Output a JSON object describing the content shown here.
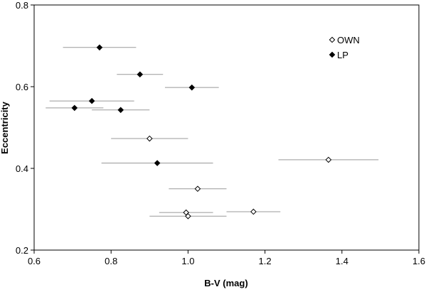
{
  "chart_data": {
    "type": "scatter",
    "title": "",
    "xlabel": "B-V (mag)",
    "ylabel": "Eccentricity",
    "xlim": [
      0.6,
      1.6
    ],
    "ylim": [
      0.2,
      0.8
    ],
    "xticks": [
      "0.6",
      "0.8",
      "1.0",
      "1.2",
      "1.4",
      "1.6"
    ],
    "yticks": [
      "0.2",
      "0.4",
      "0.6",
      "0.8"
    ],
    "grid": false,
    "legend_position": "top-right",
    "error_bars": "horizontal",
    "series": [
      {
        "name": "OWN",
        "marker": "open-diamond",
        "points": [
          {
            "x": 0.9,
            "y": 0.473,
            "xerr_low": 0.8,
            "xerr_high": 1.0
          },
          {
            "x": 1.365,
            "y": 0.421,
            "xerr_low": 1.235,
            "xerr_high": 1.495
          },
          {
            "x": 1.025,
            "y": 0.35,
            "xerr_low": 0.95,
            "xerr_high": 1.1
          },
          {
            "x": 1.17,
            "y": 0.294,
            "xerr_low": 1.1,
            "xerr_high": 1.24
          },
          {
            "x": 0.995,
            "y": 0.292,
            "xerr_low": 0.925,
            "xerr_high": 1.065
          },
          {
            "x": 1.0,
            "y": 0.283,
            "xerr_low": 0.9,
            "xerr_high": 1.1
          }
        ]
      },
      {
        "name": "LP",
        "marker": "filled-diamond",
        "points": [
          {
            "x": 0.77,
            "y": 0.696,
            "xerr_low": 0.675,
            "xerr_high": 0.865
          },
          {
            "x": 0.875,
            "y": 0.63,
            "xerr_low": 0.815,
            "xerr_high": 0.935
          },
          {
            "x": 1.01,
            "y": 0.598,
            "xerr_low": 0.94,
            "xerr_high": 1.08
          },
          {
            "x": 0.75,
            "y": 0.565,
            "xerr_low": 0.64,
            "xerr_high": 0.86
          },
          {
            "x": 0.705,
            "y": 0.548,
            "xerr_low": 0.63,
            "xerr_high": 0.78
          },
          {
            "x": 0.825,
            "y": 0.543,
            "xerr_low": 0.75,
            "xerr_high": 0.9
          },
          {
            "x": 0.92,
            "y": 0.413,
            "xerr_low": 0.775,
            "xerr_high": 1.065
          }
        ]
      }
    ]
  },
  "colors": {
    "marker": "#000000",
    "errorbar": "#999999",
    "axis": "#000000",
    "background": "#ffffff"
  }
}
